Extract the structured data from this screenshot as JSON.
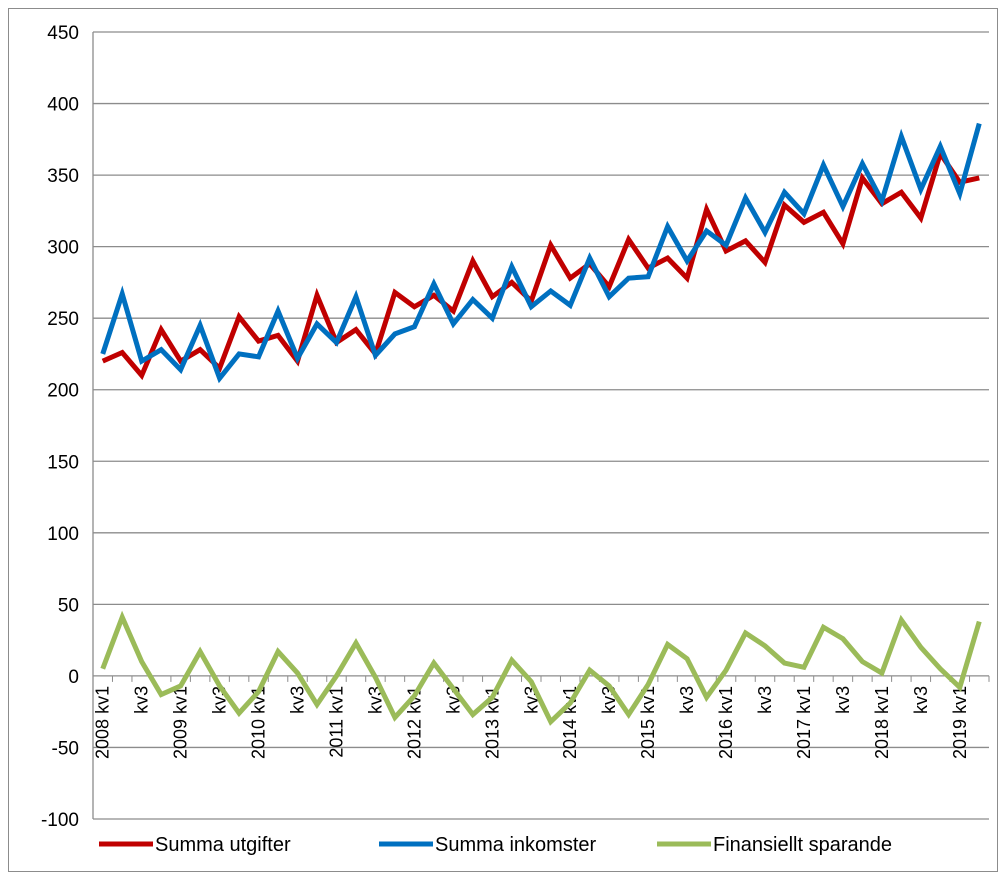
{
  "chart_data": {
    "type": "line",
    "title": "",
    "xlabel": "",
    "ylabel": "",
    "ylim": [
      -100,
      450
    ],
    "yticks": [
      -100,
      -50,
      0,
      50,
      100,
      150,
      200,
      250,
      300,
      350,
      400,
      450
    ],
    "grid": "horizontal",
    "legend": "bottom",
    "x": [
      "2008 kv1",
      "2008 kv2",
      "2008 kv3",
      "2008 kv4",
      "2009 kv1",
      "2009 kv2",
      "2009 kv3",
      "2009 kv4",
      "2010 kv1",
      "2010 kv2",
      "2010 kv3",
      "2010 kv4",
      "2011 kv1",
      "2011 kv2",
      "2011 kv3",
      "2011 kv4",
      "2012 kv1",
      "2012 kv2",
      "2012 kv3",
      "2012 kv4",
      "2013 kv1",
      "2013 kv2",
      "2013 kv3",
      "2013 kv4",
      "2014 kv1",
      "2014 kv2",
      "2014 kv3",
      "2014 kv4",
      "2015 kv1",
      "2015 kv2",
      "2015 kv3",
      "2015 kv4",
      "2016 kv1",
      "2016 kv2",
      "2016 kv3",
      "2016 kv4",
      "2017 kv1",
      "2017 kv2",
      "2017 kv3",
      "2017 kv4",
      "2018 kv1",
      "2018 kv2",
      "2018 kv3",
      "2018 kv4",
      "2019 kv1",
      "2019 kv2"
    ],
    "x_tick_labels": [
      "2008 kv1",
      "kv3",
      "2009 kv1",
      "kv3",
      "2010 kv1",
      "kv3",
      "2011 kv1",
      "kv3",
      "2012 kv1",
      "kv3",
      "2013 kv1",
      "kv3",
      "2014 kv1",
      "kv3",
      "2015 kv1",
      "kv3",
      "2016 kv1",
      "kv3",
      "2017 kv1",
      "kv3",
      "2018 kv1",
      "kv3",
      "2019 kv1"
    ],
    "series": [
      {
        "name": "Summa utgifter",
        "color": "#c00000",
        "values": [
          220,
          226,
          210,
          242,
          220,
          228,
          215,
          251,
          234,
          238,
          220,
          266,
          233,
          242,
          225,
          268,
          258,
          266,
          255,
          290,
          265,
          275,
          262,
          301,
          278,
          288,
          272,
          305,
          285,
          292,
          278,
          326,
          297,
          304,
          289,
          329,
          317,
          324,
          302,
          348,
          330,
          338,
          320,
          365,
          345,
          348
        ]
      },
      {
        "name": "Summa inkomster",
        "color": "#0070c0",
        "values": [
          225,
          267,
          220,
          228,
          214,
          245,
          208,
          225,
          223,
          255,
          222,
          246,
          233,
          265,
          224,
          239,
          244,
          274,
          246,
          263,
          250,
          286,
          258,
          269,
          259,
          292,
          265,
          278,
          279,
          314,
          290,
          311,
          301,
          334,
          310,
          338,
          323,
          357,
          328,
          358,
          332,
          377,
          340,
          370,
          337,
          386
        ]
      },
      {
        "name": "Finansiellt sparande",
        "color": "#9bbb59",
        "values": [
          5,
          41,
          10,
          -13,
          -7,
          17,
          -7,
          -26,
          -11,
          17,
          2,
          -20,
          0,
          23,
          -1,
          -29,
          -14,
          9,
          -9,
          -27,
          -15,
          11,
          -4,
          -32,
          -19,
          4,
          -7,
          -27,
          -6,
          22,
          12,
          -15,
          4,
          30,
          21,
          9,
          6,
          34,
          26,
          10,
          2,
          39,
          20,
          5,
          -8,
          38
        ]
      }
    ]
  }
}
